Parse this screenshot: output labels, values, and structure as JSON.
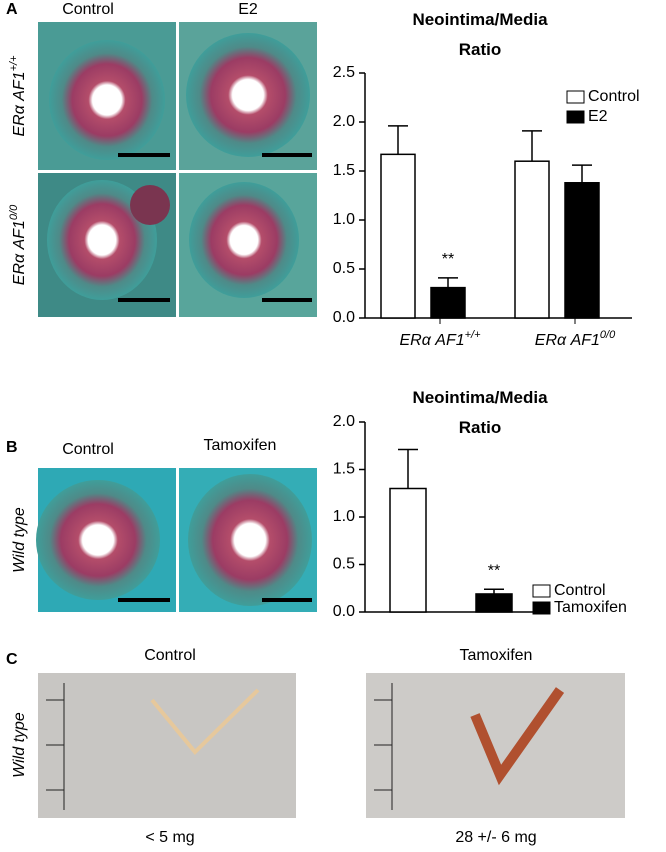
{
  "panels": {
    "A": {
      "letter": "A",
      "columns": [
        "Control",
        "E2"
      ],
      "rows": [
        {
          "text": "ERα AF1",
          "sup": "+/+"
        },
        {
          "text": "ERα AF1",
          "sup": "0/0"
        }
      ]
    },
    "B": {
      "letter": "B",
      "columns": [
        "Control",
        "Tamoxifen"
      ],
      "row": "Wild type"
    },
    "C": {
      "letter": "C",
      "columns": [
        "Control",
        "Tamoxifen"
      ],
      "row": "Wild type",
      "captions": [
        "< 5 mg",
        "28 +/- 6 mg"
      ]
    }
  },
  "chart_data": [
    {
      "type": "bar",
      "title": "Neointima/Media Ratio",
      "categories": [
        "ERα AF1",
        "ERα AF1"
      ],
      "category_superscripts": [
        "+/+",
        "0/0"
      ],
      "series": [
        {
          "name": "Control",
          "color": "#ffffff",
          "values": [
            1.67,
            1.6
          ],
          "errors": [
            0.29,
            0.31
          ]
        },
        {
          "name": "E2",
          "color": "#000000",
          "values": [
            0.31,
            1.38
          ],
          "errors": [
            0.1,
            0.18
          ]
        }
      ],
      "ylim": [
        0,
        2.5
      ],
      "yticks": [
        {
          "value": 0,
          "label": "0.0"
        },
        0.5,
        {
          "value": 1,
          "label": "1.0"
        },
        1.5,
        {
          "value": 2,
          "label": "2.0"
        },
        2.5
      ],
      "annotations": [
        "**"
      ]
    },
    {
      "type": "bar",
      "title": "Neointima/Media Ratio",
      "series": [
        {
          "name": "Control",
          "color": "#ffffff",
          "values": [
            1.3
          ],
          "errors": [
            0.41
          ]
        },
        {
          "name": "Tamoxifen",
          "color": "#000000",
          "values": [
            0.19
          ],
          "errors": [
            0.05
          ]
        }
      ],
      "ylim": [
        0,
        2.0
      ],
      "yticks": [
        {
          "value": 0,
          "label": "0.0"
        },
        0.5,
        {
          "value": 1,
          "label": "1.0"
        },
        1.5,
        {
          "value": 2,
          "label": "2.0"
        }
      ],
      "annotations": [
        "**"
      ]
    }
  ]
}
